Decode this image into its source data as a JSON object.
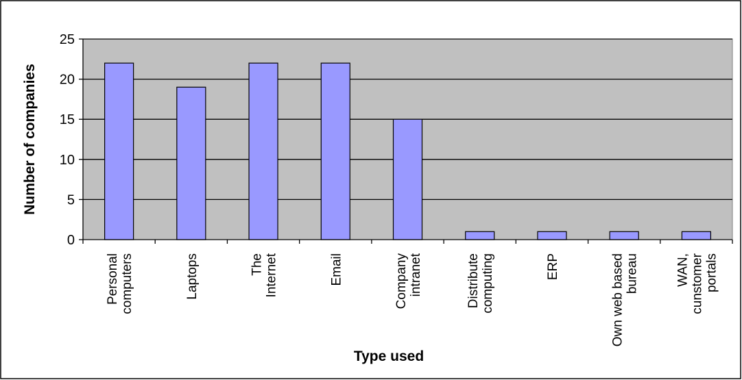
{
  "chart_data": {
    "type": "bar",
    "title": "",
    "xlabel": "Type used",
    "ylabel": "Number of companies",
    "ylim": [
      0,
      25
    ],
    "yticks": [
      0,
      5,
      10,
      15,
      20,
      25
    ],
    "grid": true,
    "legend": "none",
    "categories": [
      [
        "Personal",
        "computers"
      ],
      [
        "Laptops"
      ],
      [
        "The",
        "Internet"
      ],
      [
        "Email"
      ],
      [
        "Company",
        "intranet"
      ],
      [
        "Distribute",
        "computing"
      ],
      [
        "ERP"
      ],
      [
        "Own web based",
        "bureau"
      ],
      [
        "WAN,",
        "cunstomer",
        "portals"
      ]
    ],
    "values": [
      22,
      19,
      22,
      22,
      15,
      1,
      1,
      1,
      1
    ],
    "colors": {
      "bar_fill": "#9999FF",
      "plot_background": "#C0C0C0",
      "gridline": "#000000",
      "border": "#000000"
    }
  }
}
